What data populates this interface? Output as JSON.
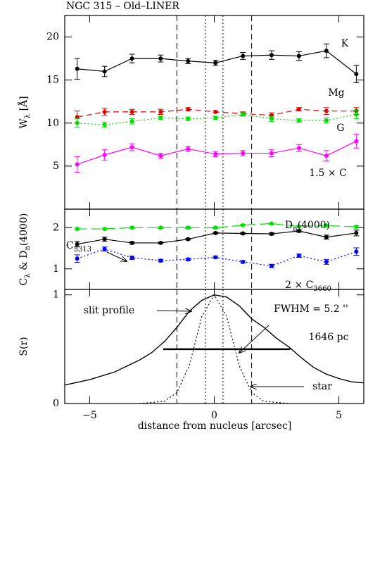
{
  "chart_data": [
    {
      "type": "errorbar",
      "title": "NGC 315  –  Old–LINER",
      "ylabel": [
        {
          "text": "W"
        },
        {
          "sub": "λ"
        },
        {
          "text": " [Å]"
        }
      ],
      "xlim": [
        -6,
        6
      ],
      "ylim": [
        0,
        22.5
      ],
      "yticks": [
        5,
        10,
        15,
        20
      ],
      "x": [
        -5.5,
        -4.4,
        -3.3,
        -2.15,
        -1.05,
        0.05,
        1.15,
        2.3,
        3.4,
        4.5,
        5.7
      ],
      "series": [
        {
          "label": [
            {
              "text": "K"
            }
          ],
          "color": "#000000",
          "dash": "solid",
          "values": [
            16.3,
            16.0,
            17.5,
            17.5,
            17.2,
            17.0,
            17.8,
            17.9,
            17.8,
            18.4,
            15.7
          ],
          "errors": [
            1.2,
            0.6,
            0.5,
            0.4,
            0.3,
            0.3,
            0.4,
            0.5,
            0.5,
            0.8,
            1.0
          ]
        },
        {
          "label": [
            {
              "text": "Mg"
            }
          ],
          "color": "#e00000",
          "dash": "dashed",
          "values": [
            10.7,
            11.3,
            11.3,
            11.3,
            11.6,
            11.3,
            11.1,
            10.9,
            11.6,
            11.4,
            11.4
          ],
          "errors": [
            0.7,
            0.4,
            0.3,
            0.3,
            0.2,
            0.1,
            0.2,
            0.3,
            0.2,
            0.4,
            0.4
          ]
        },
        {
          "label": [
            {
              "text": "G"
            }
          ],
          "color": "#00dd00",
          "dash": "dotted",
          "values": [
            10.0,
            9.8,
            10.2,
            10.6,
            10.5,
            10.6,
            11.0,
            10.5,
            10.3,
            10.3,
            11.0
          ],
          "errors": [
            0.5,
            0.3,
            0.3,
            0.2,
            0.2,
            0.2,
            0.2,
            0.3,
            0.2,
            0.3,
            0.5
          ]
        },
        {
          "label": [
            {
              "text": "1.5 × C"
            }
          ],
          "color": "#ff00ff",
          "dash": "solid",
          "values": [
            5.2,
            6.3,
            7.2,
            6.2,
            7.0,
            6.4,
            6.5,
            6.5,
            7.1,
            6.2,
            7.9
          ],
          "errors": [
            0.9,
            0.6,
            0.4,
            0.3,
            0.3,
            0.3,
            0.3,
            0.4,
            0.4,
            0.6,
            0.8
          ]
        }
      ]
    },
    {
      "type": "errorbar",
      "ylabel": [
        {
          "text": "C"
        },
        {
          "sub": "λ"
        },
        {
          "text": " & D"
        },
        {
          "sub": "n"
        },
        {
          "text": "(4000)"
        }
      ],
      "xlim": [
        -6,
        6
      ],
      "ylim": [
        0.5,
        2.45
      ],
      "yticks": [
        1,
        2
      ],
      "x": [
        -5.5,
        -4.4,
        -3.3,
        -2.15,
        -1.05,
        0.05,
        1.15,
        2.3,
        3.4,
        4.5,
        5.7
      ],
      "series": [
        {
          "label": [
            {
              "text": "D"
            },
            {
              "sub": "n"
            },
            {
              "text": "(4000)"
            }
          ],
          "color": "#00dd00",
          "dash": "longdash",
          "values": [
            1.97,
            1.97,
            2.0,
            2.0,
            2.0,
            2.0,
            2.06,
            2.1,
            2.03,
            2.05,
            2.02
          ],
          "errors": [
            0.03,
            0.02,
            0.02,
            0.02,
            0.02,
            0.02,
            0.02,
            0.02,
            0.02,
            0.03,
            0.03
          ]
        },
        {
          "label": [
            {
              "text": "C"
            },
            {
              "sub": "5313"
            }
          ],
          "color": "#000000",
          "dash": "solid",
          "values": [
            1.6,
            1.72,
            1.63,
            1.63,
            1.72,
            1.87,
            1.86,
            1.85,
            1.92,
            1.77,
            1.87
          ],
          "errors": [
            0.07,
            0.05,
            0.03,
            0.02,
            0.02,
            0.02,
            0.02,
            0.03,
            0.03,
            0.05,
            0.07
          ]
        },
        {
          "label": [
            {
              "text": "2 × C"
            },
            {
              "sub": "3660"
            }
          ],
          "color": "#0000ff",
          "dash": "dotted",
          "values": [
            1.25,
            1.48,
            1.27,
            1.2,
            1.23,
            1.28,
            1.17,
            1.07,
            1.32,
            1.17,
            1.42
          ],
          "errors": [
            0.09,
            0.05,
            0.04,
            0.03,
            0.03,
            0.03,
            0.03,
            0.04,
            0.04,
            0.06,
            0.09
          ]
        }
      ]
    },
    {
      "type": "line",
      "ylabel": [
        {
          "text": "S(r)"
        }
      ],
      "xlabel": "distance from nucleus [arcsec]",
      "xlim": [
        -6,
        6
      ],
      "ylim": [
        0,
        1.05
      ],
      "xticks": [
        {
          "value": -5,
          "label": "−5"
        },
        0,
        5
      ],
      "yticks": [
        0,
        1
      ],
      "series": [
        {
          "color": "#000000",
          "dash": "solid",
          "x": [
            -6,
            -5,
            -4,
            -3,
            -2.5,
            -2,
            -1.5,
            -1,
            -0.5,
            0,
            0.5,
            1,
            1.5,
            2,
            2.5,
            3,
            3.5,
            4,
            4.5,
            5,
            5.5,
            6
          ],
          "values": [
            0.17,
            0.22,
            0.29,
            0.4,
            0.47,
            0.57,
            0.7,
            0.85,
            0.95,
            1.0,
            0.98,
            0.9,
            0.78,
            0.7,
            0.6,
            0.52,
            0.42,
            0.33,
            0.27,
            0.23,
            0.2,
            0.19
          ]
        },
        {
          "color": "#000000",
          "dash": "dotted",
          "x": [
            -3,
            -2,
            -1.5,
            -1,
            -0.5,
            0,
            0.5,
            1,
            1.5,
            2,
            3
          ],
          "values": [
            0.0,
            0.02,
            0.1,
            0.35,
            0.8,
            1.0,
            0.8,
            0.35,
            0.1,
            0.02,
            0.0
          ]
        }
      ],
      "fwhm_line": {
        "x": [
          -2.05,
          3.05
        ],
        "y": 0.5
      },
      "annotations": [
        "slit profile",
        "FWHM = 5.2 ''",
        "1646 pc",
        "star"
      ],
      "vlines": {
        "dashed": [
          -1.5,
          1.5
        ],
        "dotted": [
          -0.35,
          0.35
        ]
      }
    }
  ]
}
